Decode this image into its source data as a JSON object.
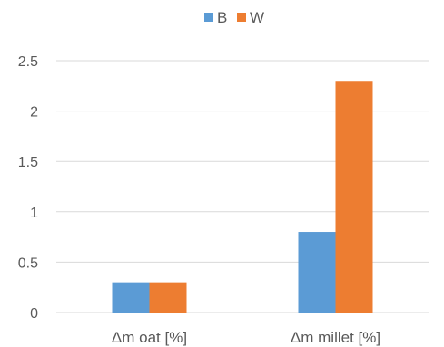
{
  "chart_data": {
    "type": "bar",
    "categories": [
      "Δm oat [%]",
      "Δm millet [%]"
    ],
    "series": [
      {
        "name": "B",
        "color": "#5b9bd5",
        "values": [
          0.3,
          0.8
        ]
      },
      {
        "name": "W",
        "color": "#ed7d31",
        "values": [
          0.3,
          2.3
        ]
      }
    ],
    "ylim": [
      0,
      2.5
    ],
    "yticks": [
      0,
      0.5,
      1,
      1.5,
      2,
      2.5
    ],
    "ytick_labels": [
      "0",
      "0.5",
      "1",
      "1.5",
      "2",
      "2.5"
    ],
    "grid": true,
    "legend_position": "top-center"
  }
}
